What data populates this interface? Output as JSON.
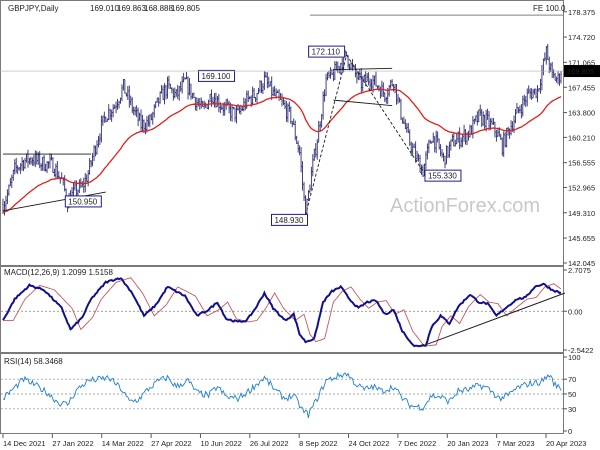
{
  "chart_data": [
    {
      "type": "candlestick",
      "title": "GBPJPY,Daily",
      "ohlc": [
        "169.010",
        "169.863",
        "168.888",
        "169.805"
      ],
      "last_price": "169.805",
      "fib_label": "FE 100.0",
      "fib_level": 177.9,
      "ylim": [
        142.045,
        179.5
      ],
      "y_ticks": [
        "178.375",
        "174.720",
        "171.065",
        "167.455",
        "163.800",
        "160.210",
        "156.555",
        "152.965",
        "149.310",
        "145.655",
        "142.045"
      ],
      "x_ticks": [
        "14 Dec 2021",
        "27 Jan 2022",
        "14 Mar 2022",
        "27 Apr 2022",
        "10 Jun 2022",
        "26 Jul 2022",
        "8 Sep 2022",
        "24 Oct 2022",
        "7 Dec 2022",
        "20 Jan 2023",
        "7 Mar 2023",
        "20 Apr 2023"
      ],
      "price_anchors": [
        [
          0,
          150.5
        ],
        [
          4,
          152.5
        ],
        [
          8,
          155.5
        ],
        [
          14,
          156.8
        ],
        [
          20,
          157.2
        ],
        [
          26,
          156.5
        ],
        [
          34,
          156.2
        ],
        [
          40,
          154.0
        ],
        [
          44,
          151.0
        ],
        [
          50,
          152.6
        ],
        [
          54,
          153.0
        ],
        [
          58,
          155.0
        ],
        [
          64,
          159.8
        ],
        [
          70,
          163.5
        ],
        [
          76,
          164.8
        ],
        [
          82,
          167.5
        ],
        [
          88,
          164.5
        ],
        [
          94,
          162.0
        ],
        [
          100,
          162.5
        ],
        [
          106,
          165.5
        ],
        [
          112,
          167.5
        ],
        [
          118,
          166.2
        ],
        [
          124,
          168.2
        ],
        [
          130,
          166.0
        ],
        [
          136,
          164.0
        ],
        [
          142,
          166.5
        ],
        [
          148,
          165.0
        ],
        [
          154,
          164.0
        ],
        [
          160,
          163.5
        ],
        [
          166,
          165.5
        ],
        [
          172,
          166.5
        ],
        [
          178,
          168.5
        ],
        [
          184,
          166.5
        ],
        [
          190,
          165.0
        ],
        [
          196,
          163.2
        ],
        [
          202,
          158.0
        ],
        [
          206,
          149.0
        ],
        [
          210,
          155.0
        ],
        [
          214,
          160.0
        ],
        [
          220,
          168.5
        ],
        [
          224,
          169.0
        ],
        [
          230,
          171.0
        ],
        [
          234,
          172.11
        ],
        [
          238,
          170.0
        ],
        [
          244,
          168.0
        ],
        [
          250,
          168.8
        ],
        [
          256,
          167.5
        ],
        [
          260,
          166.5
        ],
        [
          266,
          168.5
        ],
        [
          270,
          164.5
        ],
        [
          276,
          160.0
        ],
        [
          282,
          157.0
        ],
        [
          286,
          155.4
        ],
        [
          292,
          160.5
        ],
        [
          296,
          159.0
        ],
        [
          300,
          157.0
        ],
        [
          306,
          159.5
        ],
        [
          312,
          160.2
        ],
        [
          318,
          161.0
        ],
        [
          324,
          163.2
        ],
        [
          330,
          162.5
        ],
        [
          336,
          161.0
        ],
        [
          340,
          159.0
        ],
        [
          346,
          162.0
        ],
        [
          352,
          164.5
        ],
        [
          358,
          166.5
        ],
        [
          364,
          167.0
        ],
        [
          370,
          172.5
        ],
        [
          374,
          169.0
        ],
        [
          378,
          168.6
        ],
        [
          380,
          169.8
        ]
      ],
      "n_bars": 381,
      "ema_period": 55,
      "pattern_lines": [
        [
          [
            0,
            157.8
          ],
          [
            60,
            157.8
          ]
        ],
        [
          [
            0,
            149.6
          ],
          [
            70,
            152.3
          ]
        ],
        [
          [
            225,
            170.0
          ],
          [
            265,
            170.2
          ]
        ],
        [
          [
            225,
            165.6
          ],
          [
            265,
            164.8
          ]
        ],
        [
          [
            206,
            148.93
          ],
          [
            234,
            172.11
          ]
        ],
        [
          [
            234,
            172.11
          ],
          [
            286,
            155.33
          ]
        ]
      ],
      "annotations": [
        {
          "text": "150.950",
          "bar": 22,
          "value": 150.95
        },
        {
          "text": "169.100",
          "bar": 110,
          "value": 169.1
        },
        {
          "text": "172.110",
          "bar": 234,
          "value": 172.11
        },
        {
          "text": "148.930",
          "bar": 206,
          "value": 148.93
        },
        {
          "text": "155.330",
          "bar": 286,
          "value": 155.33
        }
      ],
      "watermark": "ActionForex.com",
      "colors": {
        "price": "#2b2b72",
        "ema": "#e0201a",
        "label_bg": "#1c1c8a",
        "hline": "#808080"
      }
    },
    {
      "type": "line",
      "title": "MACD(12,26,9) 1.2099 1.5158",
      "ylim": [
        -2.5422,
        2.7075
      ],
      "y_ticks": [
        "2.7075",
        "0.00",
        "-2.5422"
      ],
      "reference_lines": [
        0
      ],
      "anchors": [
        [
          0,
          -0.6
        ],
        [
          8,
          0.8
        ],
        [
          18,
          1.7
        ],
        [
          28,
          1.4
        ],
        [
          40,
          0.2
        ],
        [
          46,
          -1.2
        ],
        [
          54,
          -0.4
        ],
        [
          60,
          0.8
        ],
        [
          70,
          1.9
        ],
        [
          80,
          2.2
        ],
        [
          88,
          1.2
        ],
        [
          96,
          -0.3
        ],
        [
          104,
          0.4
        ],
        [
          112,
          1.6
        ],
        [
          118,
          1.3
        ],
        [
          124,
          1.0
        ],
        [
          132,
          -0.3
        ],
        [
          140,
          0.1
        ],
        [
          146,
          0.6
        ],
        [
          152,
          -0.5
        ],
        [
          160,
          -0.7
        ],
        [
          166,
          -0.6
        ],
        [
          172,
          0.2
        ],
        [
          178,
          1.2
        ],
        [
          184,
          0.2
        ],
        [
          192,
          -0.6
        ],
        [
          198,
          -0.2
        ],
        [
          202,
          -1.5
        ],
        [
          206,
          -2.0
        ],
        [
          212,
          -1.8
        ],
        [
          218,
          0.6
        ],
        [
          224,
          1.3
        ],
        [
          230,
          1.6
        ],
        [
          236,
          0.8
        ],
        [
          242,
          0.2
        ],
        [
          248,
          0.6
        ],
        [
          254,
          0.7
        ],
        [
          260,
          -0.2
        ],
        [
          266,
          0.1
        ],
        [
          272,
          -1.3
        ],
        [
          280,
          -2.3
        ],
        [
          288,
          -2.2
        ],
        [
          292,
          -1.0
        ],
        [
          298,
          -0.3
        ],
        [
          304,
          -0.8
        ],
        [
          310,
          0.3
        ],
        [
          318,
          1.1
        ],
        [
          324,
          0.6
        ],
        [
          330,
          0.5
        ],
        [
          336,
          -0.3
        ],
        [
          342,
          0.2
        ],
        [
          350,
          0.8
        ],
        [
          356,
          0.9
        ],
        [
          362,
          1.6
        ],
        [
          368,
          1.8
        ],
        [
          374,
          1.4
        ],
        [
          380,
          1.2
        ]
      ],
      "signal_lag": 7,
      "trend_line": [
        [
          285,
          -2.3
        ],
        [
          380,
          1.2
        ]
      ],
      "colors": {
        "macd": "#10108a",
        "signal": "#c45a5a",
        "trend": "#202020",
        "zero": "#808080"
      }
    },
    {
      "type": "line",
      "title": "RSI(14) 58.3468",
      "ylim": [
        0,
        100
      ],
      "y_ticks": [
        "100",
        "70",
        "50",
        "30",
        "0"
      ],
      "reference_lines": [
        70,
        50,
        30
      ],
      "anchors": [
        [
          0,
          44
        ],
        [
          6,
          55
        ],
        [
          14,
          70
        ],
        [
          22,
          62
        ],
        [
          30,
          52
        ],
        [
          38,
          38
        ],
        [
          44,
          36
        ],
        [
          50,
          55
        ],
        [
          58,
          68
        ],
        [
          66,
          70
        ],
        [
          72,
          72
        ],
        [
          80,
          58
        ],
        [
          86,
          40
        ],
        [
          92,
          42
        ],
        [
          98,
          55
        ],
        [
          106,
          68
        ],
        [
          112,
          72
        ],
        [
          118,
          60
        ],
        [
          126,
          68
        ],
        [
          132,
          52
        ],
        [
          140,
          48
        ],
        [
          146,
          60
        ],
        [
          152,
          46
        ],
        [
          160,
          44
        ],
        [
          166,
          52
        ],
        [
          172,
          62
        ],
        [
          178,
          72
        ],
        [
          186,
          54
        ],
        [
          192,
          44
        ],
        [
          198,
          48
        ],
        [
          204,
          28
        ],
        [
          208,
          22
        ],
        [
          214,
          44
        ],
        [
          220,
          68
        ],
        [
          228,
          74
        ],
        [
          234,
          78
        ],
        [
          240,
          64
        ],
        [
          246,
          56
        ],
        [
          252,
          60
        ],
        [
          258,
          54
        ],
        [
          266,
          60
        ],
        [
          272,
          44
        ],
        [
          278,
          34
        ],
        [
          286,
          32
        ],
        [
          292,
          48
        ],
        [
          298,
          46
        ],
        [
          304,
          40
        ],
        [
          310,
          54
        ],
        [
          318,
          56
        ],
        [
          324,
          62
        ],
        [
          330,
          58
        ],
        [
          338,
          44
        ],
        [
          344,
          48
        ],
        [
          350,
          58
        ],
        [
          358,
          64
        ],
        [
          366,
          66
        ],
        [
          372,
          76
        ],
        [
          376,
          62
        ],
        [
          380,
          58
        ]
      ],
      "colors": {
        "rsi": "#1f7fd0",
        "ref": "#888888"
      }
    }
  ]
}
